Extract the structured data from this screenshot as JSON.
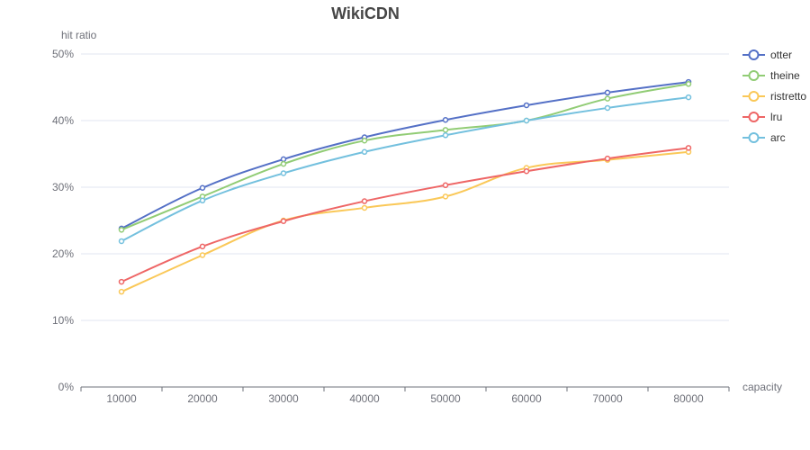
{
  "chart_data": {
    "type": "line",
    "title": "WikiCDN",
    "xlabel": "capacity",
    "ylabel": "hit ratio",
    "categories": [
      "10000",
      "20000",
      "30000",
      "40000",
      "50000",
      "60000",
      "70000",
      "80000"
    ],
    "ylim": [
      0,
      50
    ],
    "yticks": [
      0,
      10,
      20,
      30,
      40,
      50
    ],
    "ytick_labels": [
      "0%",
      "10%",
      "20%",
      "30%",
      "40%",
      "50%"
    ],
    "grid": true,
    "legend_position": "right",
    "smooth": true,
    "series": [
      {
        "name": "otter",
        "color": "#5470c6",
        "values": [
          23.8,
          29.9,
          34.2,
          37.5,
          40.1,
          42.3,
          44.2,
          45.8
        ]
      },
      {
        "name": "theine",
        "color": "#91cc75",
        "values": [
          23.6,
          28.6,
          33.5,
          37.0,
          38.6,
          40.0,
          43.3,
          45.5
        ]
      },
      {
        "name": "ristretto",
        "color": "#fac858",
        "values": [
          14.3,
          19.8,
          25.0,
          26.9,
          28.6,
          32.9,
          34.1,
          35.3
        ]
      },
      {
        "name": "lru",
        "color": "#ee6666",
        "values": [
          15.8,
          21.1,
          24.9,
          27.9,
          30.3,
          32.4,
          34.3,
          35.9
        ]
      },
      {
        "name": "arc",
        "color": "#73c0de",
        "values": [
          21.9,
          28.0,
          32.1,
          35.3,
          37.8,
          40.0,
          41.9,
          43.5
        ]
      }
    ]
  }
}
